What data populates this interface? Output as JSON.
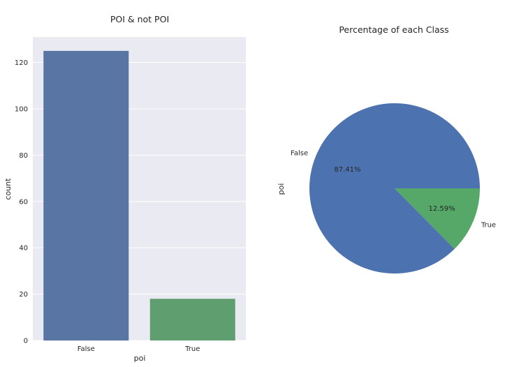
{
  "chart_data": [
    {
      "type": "bar",
      "title": "POI & not POI",
      "xlabel": "poi",
      "ylabel": "count",
      "categories": [
        "False",
        "True"
      ],
      "values": [
        125,
        18
      ],
      "colors": [
        "#5975a4",
        "#5f9e6e"
      ],
      "ylim": [
        0,
        131
      ],
      "yticks": [
        0,
        20,
        40,
        60,
        80,
        100,
        120
      ],
      "grid": true,
      "background": "#eaeaf2"
    },
    {
      "type": "pie",
      "title": "Percentage of each Class",
      "ylabel": "poi",
      "labels": [
        "False",
        "True"
      ],
      "values": [
        87.41,
        12.59
      ],
      "value_labels": [
        "87.41%",
        "12.59%"
      ],
      "colors": [
        "#4c72b0",
        "#55a868"
      ]
    }
  ]
}
